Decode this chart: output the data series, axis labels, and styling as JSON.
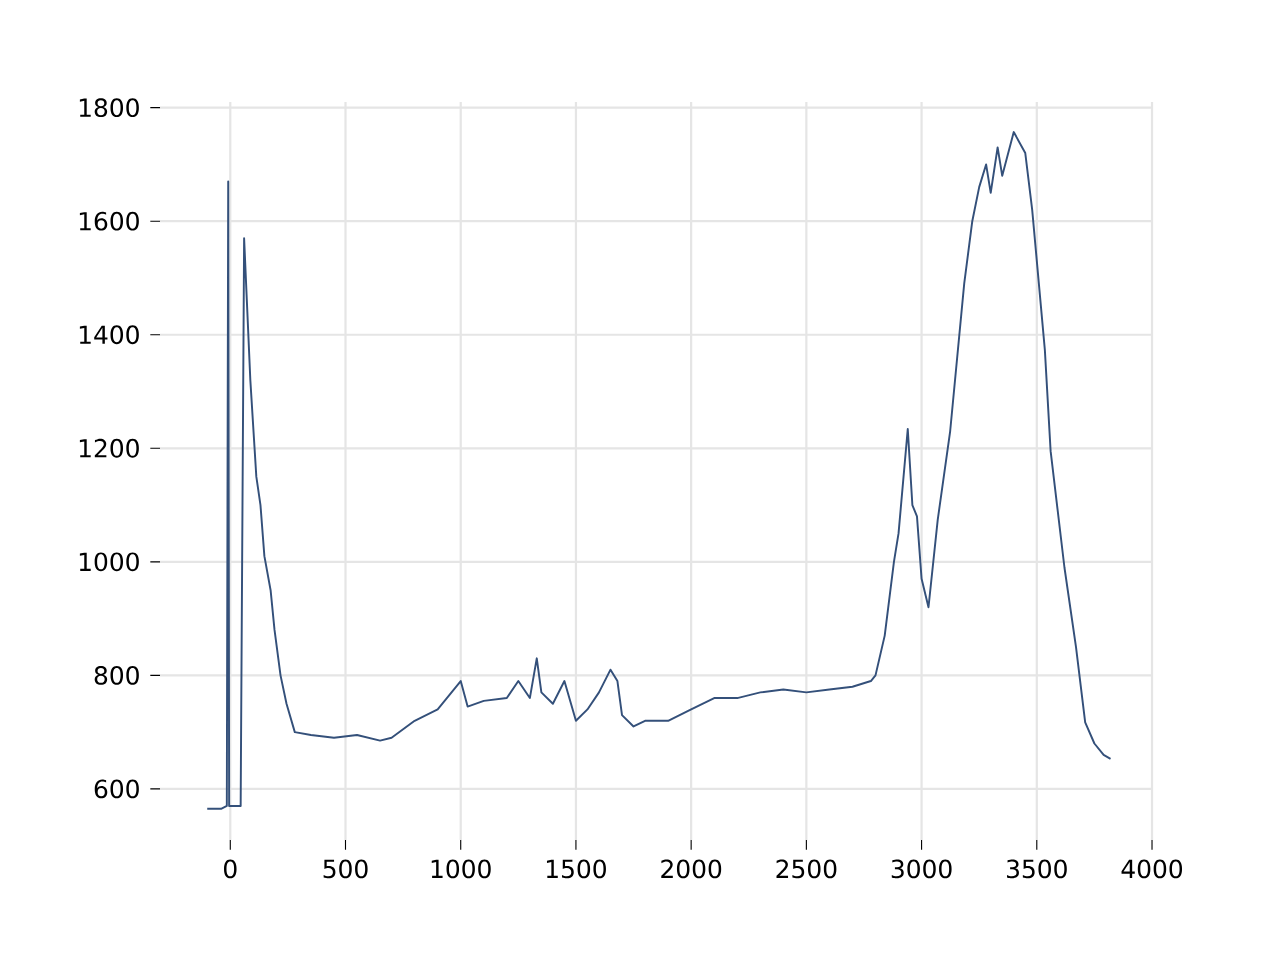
{
  "chart_data": {
    "type": "line",
    "color": "#34507a",
    "grid": true,
    "marker": "none",
    "line_style": "solid",
    "xlim": [
      -305,
      4000
    ],
    "ylim": [
      510,
      1810
    ],
    "xticks": [
      0,
      500,
      1000,
      1500,
      2000,
      2500,
      3000,
      3500,
      4000
    ],
    "yticks": [
      600,
      800,
      1000,
      1200,
      1400,
      1600,
      1800
    ],
    "x": [
      -100,
      -40,
      -15,
      -9,
      -5,
      5,
      45,
      60,
      87,
      113,
      131,
      148,
      175,
      192,
      218,
      244,
      280,
      350,
      450,
      550,
      650,
      700,
      800,
      900,
      1000,
      1030,
      1100,
      1200,
      1250,
      1300,
      1330,
      1350,
      1400,
      1450,
      1500,
      1550,
      1600,
      1650,
      1680,
      1700,
      1750,
      1800,
      1900,
      2000,
      2100,
      2200,
      2300,
      2400,
      2500,
      2600,
      2700,
      2780,
      2800,
      2840,
      2880,
      2900,
      2940,
      2960,
      2980,
      3000,
      3030,
      3070,
      3124,
      3185,
      3220,
      3250,
      3280,
      3300,
      3330,
      3350,
      3400,
      3450,
      3480,
      3535,
      3560,
      3620,
      3670,
      3710,
      3750,
      3790,
      3820
    ],
    "values": [
      565,
      565,
      570,
      1670,
      570,
      570,
      570,
      1570,
      1320,
      1150,
      1100,
      1010,
      950,
      880,
      800,
      750,
      700,
      695,
      690,
      695,
      685,
      690,
      720,
      740,
      790,
      745,
      755,
      760,
      790,
      760,
      830,
      770,
      750,
      790,
      720,
      740,
      770,
      810,
      790,
      730,
      710,
      720,
      720,
      740,
      760,
      760,
      770,
      775,
      770,
      775,
      780,
      790,
      800,
      870,
      1000,
      1050,
      1234,
      1100,
      1080,
      970,
      920,
      1074,
      1230,
      1490,
      1600,
      1660,
      1700,
      1650,
      1730,
      1680,
      1757,
      1720,
      1620,
      1373,
      1195,
      990,
      850,
      717,
      680,
      660,
      653
    ]
  }
}
